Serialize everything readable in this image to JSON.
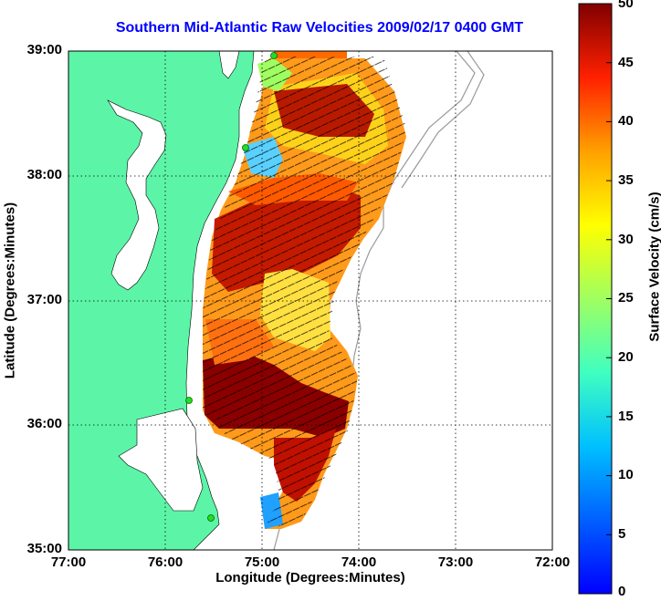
{
  "title": "Southern Mid-Atlantic Raw Velocities 2009/02/17 0400 GMT",
  "xlabel": "Longitude (Degrees:Minutes)",
  "ylabel": "Latitude (Degrees:Minutes)",
  "colorbar_label": "Surface Velocity (cm/s)",
  "x_ticks": [
    "77:00",
    "76:00",
    "75:00",
    "74:00",
    "73:00",
    "72:00"
  ],
  "y_ticks": [
    "39:00",
    "38:00",
    "37:00",
    "36:00",
    "35:00"
  ],
  "colorbar_ticks": [
    "50",
    "45",
    "40",
    "35",
    "30",
    "25",
    "20",
    "15",
    "10",
    "5",
    "0"
  ],
  "colorbar_range": [
    0,
    50
  ],
  "colors": {
    "land": "#5cf5a8",
    "title": "#0000ff",
    "station": "#22dd22"
  }
}
